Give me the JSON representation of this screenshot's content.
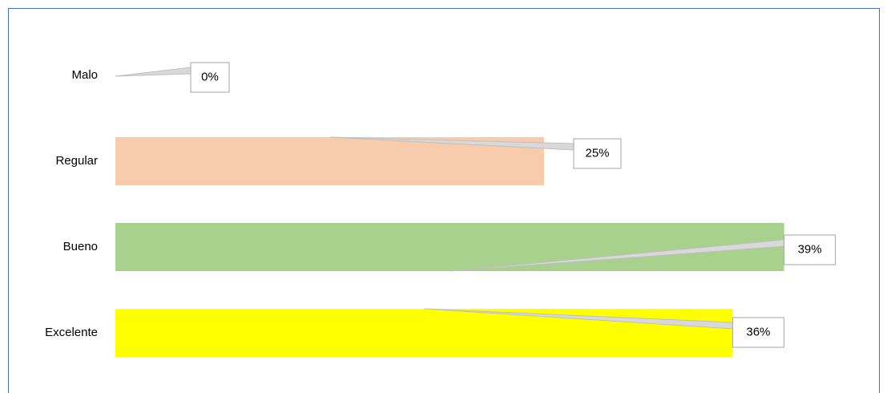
{
  "chart_data": {
    "type": "bar",
    "orientation": "horizontal",
    "categories": [
      "Malo",
      "Regular",
      "Bueno",
      "Excelente"
    ],
    "values": [
      0,
      25,
      39,
      36
    ],
    "value_labels": [
      "0%",
      "25%",
      "39%",
      "36%"
    ],
    "colors": [
      "#f4b183",
      "#f8cbad",
      "#a9d18e",
      "#ffff00"
    ]
  }
}
